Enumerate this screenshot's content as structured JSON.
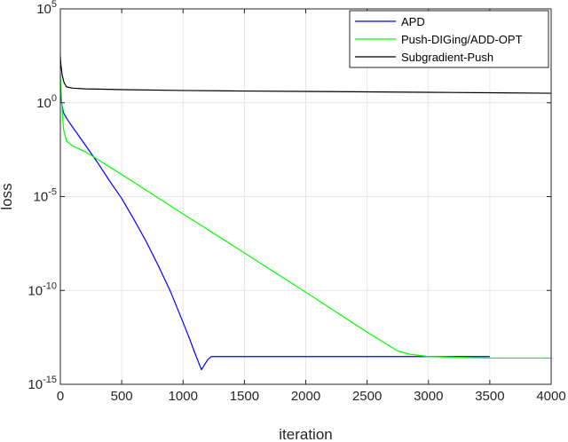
{
  "chart_data": {
    "type": "line",
    "title": "",
    "xlabel": "iteration",
    "ylabel": "loss",
    "xlim": [
      0,
      4000
    ],
    "ylim": [
      1e-15,
      100000
    ],
    "yscale": "log",
    "grid": true,
    "legend_position": "top-right",
    "x_ticks": [
      {
        "value": 0,
        "label": "0"
      },
      {
        "value": 500,
        "label": "500"
      },
      {
        "value": 1000,
        "label": "1000"
      },
      {
        "value": 1500,
        "label": "1500"
      },
      {
        "value": 2000,
        "label": "2000"
      },
      {
        "value": 2500,
        "label": "2500"
      },
      {
        "value": 3000,
        "label": "3000"
      },
      {
        "value": 3500,
        "label": "3500"
      },
      {
        "value": 4000,
        "label": "4000"
      }
    ],
    "y_ticks": [
      {
        "value": 1e-15,
        "base": "10",
        "exp": "-15"
      },
      {
        "value": 1e-10,
        "base": "10",
        "exp": "-10"
      },
      {
        "value": 1e-05,
        "base": "10",
        "exp": "-5"
      },
      {
        "value": 1,
        "base": "10",
        "exp": "0"
      },
      {
        "value": 100000,
        "base": "10",
        "exp": "5"
      }
    ],
    "series": [
      {
        "name": "APD",
        "color": "#0000ff",
        "x": [
          0,
          10,
          25,
          50,
          100,
          200,
          300,
          400,
          500,
          600,
          700,
          800,
          900,
          1000,
          1050,
          1100,
          1150,
          1200,
          1230,
          1250,
          1300,
          1400,
          1500,
          1600,
          1650,
          1700,
          1800,
          2000,
          2500,
          3000,
          3500
        ],
        "y": [
          10,
          1.0,
          0.3,
          0.15,
          0.05,
          0.006,
          0.0007,
          7e-05,
          8e-06,
          6e-07,
          4e-08,
          2e-09,
          8e-11,
          2e-12,
          3e-13,
          4e-14,
          6e-15,
          2e-14,
          3e-14,
          3e-14,
          3e-14,
          3e-14,
          3e-14,
          3e-14,
          3e-14,
          3e-14,
          3e-14,
          3e-14,
          3e-14,
          3e-14,
          3e-14
        ]
      },
      {
        "name": "Push-DIGing/ADD-OPT",
        "color": "#00ff00",
        "x": [
          0,
          10,
          25,
          50,
          100,
          200,
          300,
          500,
          1000,
          1500,
          2000,
          2500,
          2650,
          2750,
          2850,
          3000,
          3500,
          4000
        ],
        "y": [
          30,
          1.5,
          0.04,
          0.009,
          0.005,
          0.0025,
          0.001,
          0.00015,
          1.2e-06,
          1e-08,
          8e-11,
          6e-13,
          1.5e-13,
          6e-14,
          4e-14,
          3e-14,
          2.5e-14,
          2.5e-14
        ]
      },
      {
        "name": "Subgradient-Push",
        "color": "#000000",
        "x": [
          0,
          5,
          15,
          30,
          50,
          100,
          200,
          500,
          1000,
          1500,
          2000,
          2500,
          3000,
          3500,
          4000
        ],
        "y": [
          300,
          100,
          30,
          12,
          7,
          6,
          5.5,
          5,
          4.5,
          4.2,
          4.0,
          3.8,
          3.6,
          3.4,
          3.2
        ]
      }
    ]
  }
}
